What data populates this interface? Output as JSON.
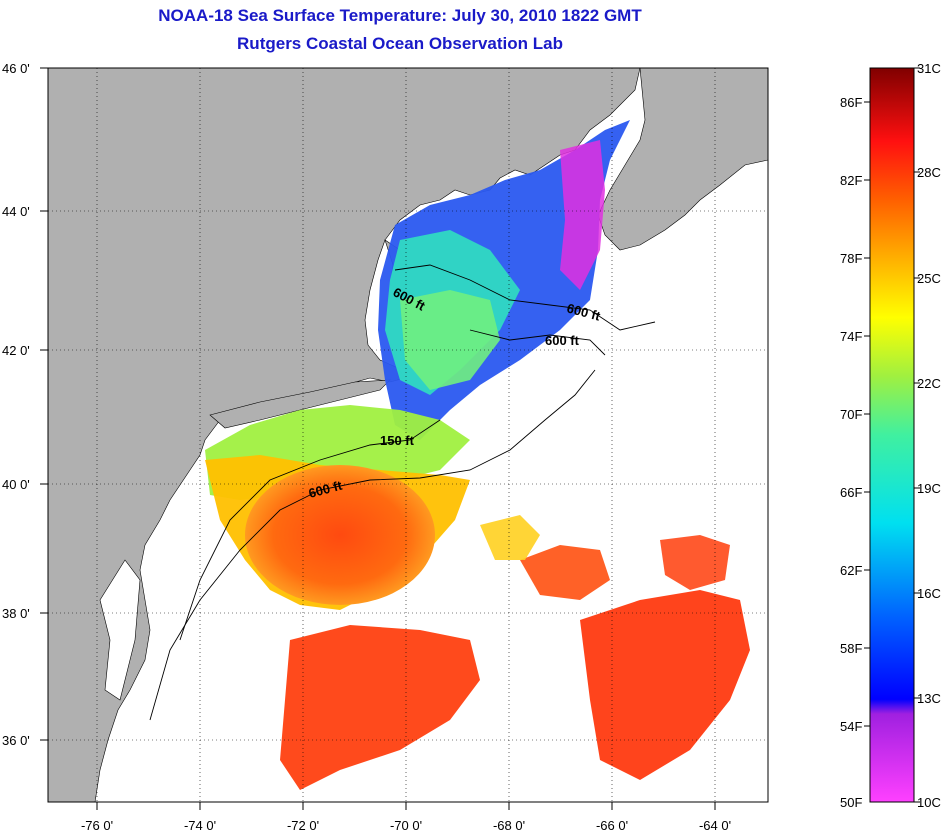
{
  "title_line1": "NOAA-18 Sea Surface Temperature:  July 30, 2010 1822 GMT",
  "title_line2": "Rutgers Coastal Ocean Observation Lab",
  "lat_labels": [
    "46 0'",
    "44 0'",
    "42 0'",
    "40 0'",
    "38 0'",
    "36 0'"
  ],
  "lon_labels": [
    "-76 0'",
    "-74 0'",
    "-72 0'",
    "-70 0'",
    "-68 0'",
    "-66 0'",
    "-64 0'"
  ],
  "contour_labels": [
    "600 ft",
    "600 ft",
    "600 ft",
    "150 ft",
    "600 ft"
  ],
  "colorbar": {
    "fahrenheit": [
      "86F",
      "82F",
      "78F",
      "74F",
      "70F",
      "66F",
      "62F",
      "58F",
      "54F",
      "50F"
    ],
    "celsius": [
      "31C",
      "28C",
      "25C",
      "22C",
      "19C",
      "16C",
      "13C",
      "10C"
    ]
  },
  "colors": {
    "title": "#1a1ac8",
    "land": "#b0b0b0",
    "warm": "#ff5a10",
    "cold": "#2030e0"
  }
}
